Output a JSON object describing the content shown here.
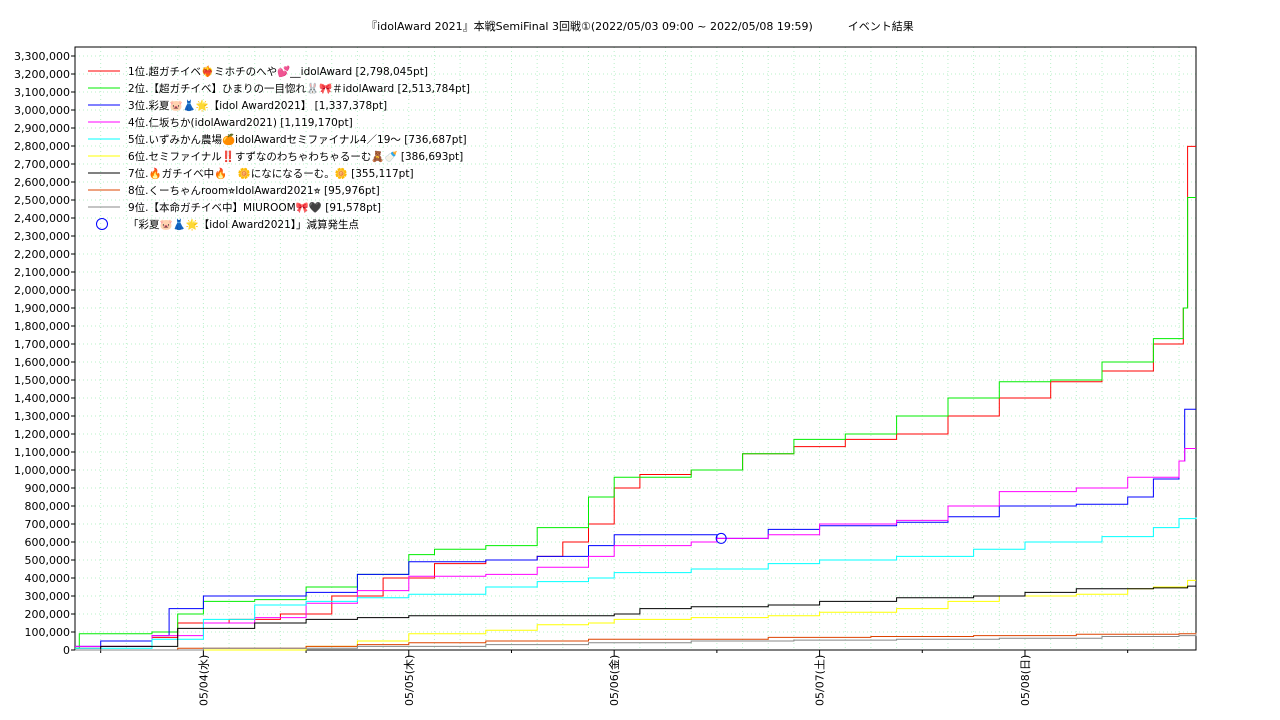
{
  "chart_data": {
    "type": "line",
    "title": "『idolAward 2021』本戦SemiFinal 3回戦①(2022/05/03 09:00 ~ 2022/05/08 19:59)          イベント結果",
    "xlabel": "",
    "ylabel": "",
    "xlim": [
      "2022/05/03 09:00",
      "2022/05/08 19:59"
    ],
    "ylim": [
      0,
      3350000
    ],
    "grid": true,
    "legend_position": "top-left",
    "x_ticks": [
      "05/04(水)",
      "05/05(木)",
      "05/06(金)",
      "05/07(土)",
      "05/08(日)"
    ],
    "y_ticks": [
      "0",
      "100,000",
      "200,000",
      "300,000",
      "400,000",
      "500,000",
      "600,000",
      "700,000",
      "800,000",
      "900,000",
      "1,000,000",
      "1,100,000",
      "1,200,000",
      "1,300,000",
      "1,400,000",
      "1,500,000",
      "1,600,000",
      "1,700,000",
      "1,800,000",
      "1,900,000",
      "2,000,000",
      "2,100,000",
      "2,200,000",
      "2,300,000",
      "2,400,000",
      "2,500,000",
      "2,600,000",
      "2,700,000",
      "2,800,000",
      "2,900,000",
      "3,000,000",
      "3,100,000",
      "3,200,000",
      "3,300,000"
    ],
    "series": [
      {
        "name": "1位.超ガチイベ❤️‍🔥ミホチのへや💕__idolAward [2,798,045pt]",
        "color": "#ff0000",
        "points": [
          [
            "05/03 09:00",
            10000
          ],
          [
            "05/03 12:00",
            20000
          ],
          [
            "05/03 18:00",
            70000
          ],
          [
            "05/03 21:00",
            150000
          ],
          [
            "05/04 03:00",
            170000
          ],
          [
            "05/04 09:00",
            200000
          ],
          [
            "05/04 15:00",
            300000
          ],
          [
            "05/04 21:00",
            400000
          ],
          [
            "05/05 03:00",
            480000
          ],
          [
            "05/05 09:00",
            500000
          ],
          [
            "05/05 15:00",
            520000
          ],
          [
            "05/05 18:00",
            600000
          ],
          [
            "05/05 21:00",
            700000
          ],
          [
            "05/06 00:00",
            900000
          ],
          [
            "05/06 03:00",
            975000
          ],
          [
            "05/06 09:00",
            1000000
          ],
          [
            "05/06 15:00",
            1090000
          ],
          [
            "05/06 21:00",
            1130000
          ],
          [
            "05/07 03:00",
            1170000
          ],
          [
            "05/07 09:00",
            1200000
          ],
          [
            "05/07 15:00",
            1300000
          ],
          [
            "05/07 21:00",
            1400000
          ],
          [
            "05/08 03:00",
            1490000
          ],
          [
            "05/08 09:00",
            1550000
          ],
          [
            "05/08 15:00",
            1700000
          ],
          [
            "05/08 18:30",
            1900000
          ],
          [
            "05/08 19:00",
            2798045
          ],
          [
            "05/08 19:59",
            2798045
          ]
        ]
      },
      {
        "name": "2位.【超ガチイベ】ひまりの一目惚れ🐰🎀＃idolAward [2,513,784pt]",
        "color": "#00ee00",
        "points": [
          [
            "05/03 09:00",
            10000
          ],
          [
            "05/03 09:30",
            90000
          ],
          [
            "05/03 18:00",
            100000
          ],
          [
            "05/03 21:00",
            200000
          ],
          [
            "05/04 00:00",
            270000
          ],
          [
            "05/04 06:00",
            280000
          ],
          [
            "05/04 12:00",
            350000
          ],
          [
            "05/04 18:00",
            420000
          ],
          [
            "05/05 00:00",
            530000
          ],
          [
            "05/05 03:00",
            560000
          ],
          [
            "05/05 09:00",
            580000
          ],
          [
            "05/05 15:00",
            680000
          ],
          [
            "05/05 21:00",
            850000
          ],
          [
            "05/06 00:00",
            960000
          ],
          [
            "05/06 09:00",
            1000000
          ],
          [
            "05/06 15:00",
            1090000
          ],
          [
            "05/06 21:00",
            1170000
          ],
          [
            "05/07 03:00",
            1200000
          ],
          [
            "05/07 09:00",
            1300000
          ],
          [
            "05/07 15:00",
            1400000
          ],
          [
            "05/07 21:00",
            1490000
          ],
          [
            "05/08 03:00",
            1500000
          ],
          [
            "05/08 09:00",
            1600000
          ],
          [
            "05/08 15:00",
            1730000
          ],
          [
            "05/08 18:30",
            1900000
          ],
          [
            "05/08 19:00",
            2513784
          ],
          [
            "05/08 19:59",
            2513784
          ]
        ]
      },
      {
        "name": "3位.彩夏🐷👗🌟【idol Award2021】 [1,337,378pt]",
        "color": "#0000ff",
        "points": [
          [
            "05/03 09:00",
            20000
          ],
          [
            "05/03 12:00",
            50000
          ],
          [
            "05/03 18:00",
            80000
          ],
          [
            "05/03 20:00",
            230000
          ],
          [
            "05/04 00:00",
            300000
          ],
          [
            "05/04 12:00",
            320000
          ],
          [
            "05/04 18:00",
            420000
          ],
          [
            "05/05 00:00",
            490000
          ],
          [
            "05/05 09:00",
            500000
          ],
          [
            "05/05 15:00",
            520000
          ],
          [
            "05/05 21:00",
            580000
          ],
          [
            "05/06 00:00",
            640000
          ],
          [
            "05/06 09:00",
            640000
          ],
          [
            "05/06 12:00",
            620000
          ],
          [
            "05/06 18:00",
            670000
          ],
          [
            "05/07 00:00",
            690000
          ],
          [
            "05/07 09:00",
            710000
          ],
          [
            "05/07 15:00",
            740000
          ],
          [
            "05/07 21:00",
            800000
          ],
          [
            "05/08 06:00",
            810000
          ],
          [
            "05/08 12:00",
            850000
          ],
          [
            "05/08 15:00",
            950000
          ],
          [
            "05/08 18:00",
            1050000
          ],
          [
            "05/08 18:40",
            1337378
          ],
          [
            "05/08 19:59",
            1337378
          ]
        ]
      },
      {
        "name": "4位.仁坂ちか(idolAward2021) [1,119,170pt]",
        "color": "#ff00ff",
        "points": [
          [
            "05/03 09:00",
            20000
          ],
          [
            "05/03 18:00",
            80000
          ],
          [
            "05/04 00:00",
            150000
          ],
          [
            "05/04 06:00",
            180000
          ],
          [
            "05/04 12:00",
            260000
          ],
          [
            "05/04 18:00",
            330000
          ],
          [
            "05/05 00:00",
            410000
          ],
          [
            "05/05 09:00",
            420000
          ],
          [
            "05/05 15:00",
            460000
          ],
          [
            "05/05 21:00",
            520000
          ],
          [
            "05/06 00:00",
            580000
          ],
          [
            "05/06 09:00",
            600000
          ],
          [
            "05/06 12:00",
            620000
          ],
          [
            "05/06 18:00",
            640000
          ],
          [
            "05/07 00:00",
            700000
          ],
          [
            "05/07 09:00",
            720000
          ],
          [
            "05/07 15:00",
            800000
          ],
          [
            "05/07 21:00",
            880000
          ],
          [
            "05/08 06:00",
            900000
          ],
          [
            "05/08 12:00",
            960000
          ],
          [
            "05/08 18:00",
            1050000
          ],
          [
            "05/08 18:40",
            1119170
          ],
          [
            "05/08 19:59",
            1119170
          ]
        ]
      },
      {
        "name": "5位.いずみかん農場🍊idolAwardセミファイナル4／19〜 [736,687pt]",
        "color": "#00ffff",
        "points": [
          [
            "05/03 09:00",
            10000
          ],
          [
            "05/03 18:00",
            60000
          ],
          [
            "05/04 00:00",
            170000
          ],
          [
            "05/04 06:00",
            250000
          ],
          [
            "05/04 12:00",
            270000
          ],
          [
            "05/04 18:00",
            290000
          ],
          [
            "05/05 00:00",
            310000
          ],
          [
            "05/05 09:00",
            350000
          ],
          [
            "05/05 15:00",
            380000
          ],
          [
            "05/05 21:00",
            400000
          ],
          [
            "05/06 00:00",
            430000
          ],
          [
            "05/06 09:00",
            450000
          ],
          [
            "05/06 18:00",
            480000
          ],
          [
            "05/07 00:00",
            500000
          ],
          [
            "05/07 09:00",
            520000
          ],
          [
            "05/07 18:00",
            560000
          ],
          [
            "05/08 00:00",
            600000
          ],
          [
            "05/08 09:00",
            630000
          ],
          [
            "05/08 15:00",
            680000
          ],
          [
            "05/08 18:00",
            730000
          ],
          [
            "05/08 19:59",
            736687
          ]
        ]
      },
      {
        "name": "6位.セミファイナル‼️すずなのわちゃわちゃるーむ🧸🍼 [386,693pt]",
        "color": "#ffff00",
        "points": [
          [
            "05/03 09:00",
            0
          ],
          [
            "05/04 12:00",
            20000
          ],
          [
            "05/04 18:00",
            50000
          ],
          [
            "05/05 00:00",
            90000
          ],
          [
            "05/05 09:00",
            110000
          ],
          [
            "05/05 15:00",
            140000
          ],
          [
            "05/05 21:00",
            150000
          ],
          [
            "05/06 00:00",
            170000
          ],
          [
            "05/06 09:00",
            180000
          ],
          [
            "05/06 18:00",
            190000
          ],
          [
            "05/07 00:00",
            210000
          ],
          [
            "05/07 09:00",
            230000
          ],
          [
            "05/07 15:00",
            270000
          ],
          [
            "05/07 21:00",
            300000
          ],
          [
            "05/08 06:00",
            310000
          ],
          [
            "05/08 12:00",
            340000
          ],
          [
            "05/08 15:00",
            350000
          ],
          [
            "05/08 19:00",
            386693
          ],
          [
            "05/08 19:59",
            386693
          ]
        ]
      },
      {
        "name": "7位.🔥ガチイベ中🔥　🌼になになるーむ。🌼 [355,117pt]",
        "color": "#000000",
        "points": [
          [
            "05/03 09:00",
            0
          ],
          [
            "05/03 12:00",
            20000
          ],
          [
            "05/03 21:00",
            120000
          ],
          [
            "05/04 06:00",
            150000
          ],
          [
            "05/04 12:00",
            170000
          ],
          [
            "05/04 18:00",
            180000
          ],
          [
            "05/05 00:00",
            190000
          ],
          [
            "05/05 09:00",
            190000
          ],
          [
            "05/05 21:00",
            190000
          ],
          [
            "05/06 00:00",
            200000
          ],
          [
            "05/06 03:00",
            230000
          ],
          [
            "05/06 09:00",
            240000
          ],
          [
            "05/06 18:00",
            250000
          ],
          [
            "05/07 00:00",
            270000
          ],
          [
            "05/07 09:00",
            290000
          ],
          [
            "05/07 18:00",
            300000
          ],
          [
            "05/08 00:00",
            320000
          ],
          [
            "05/08 06:00",
            340000
          ],
          [
            "05/08 15:00",
            345000
          ],
          [
            "05/08 19:00",
            355117
          ],
          [
            "05/08 19:59",
            355117
          ]
        ]
      },
      {
        "name": "8位.くーちゃんroom⭐︎IdolAward2021⭐︎ [95,976pt]",
        "color": "#dd4400",
        "points": [
          [
            "05/03 09:00",
            0
          ],
          [
            "05/03 21:00",
            10000
          ],
          [
            "05/04 12:00",
            20000
          ],
          [
            "05/04 18:00",
            30000
          ],
          [
            "05/05 00:00",
            40000
          ],
          [
            "05/05 09:00",
            50000
          ],
          [
            "05/05 21:00",
            60000
          ],
          [
            "05/06 09:00",
            60000
          ],
          [
            "05/06 18:00",
            70000
          ],
          [
            "05/07 06:00",
            75000
          ],
          [
            "05/07 18:00",
            80000
          ],
          [
            "05/08 06:00",
            88000
          ],
          [
            "05/08 18:00",
            90000
          ],
          [
            "05/08 19:59",
            95976
          ]
        ]
      },
      {
        "name": "9位.【本命ガチイベ中】MIUROOM🎀🖤 [91,578pt]",
        "color": "#888888",
        "points": [
          [
            "05/03 09:00",
            0
          ],
          [
            "05/04 00:00",
            10000
          ],
          [
            "05/04 18:00",
            20000
          ],
          [
            "05/05 09:00",
            30000
          ],
          [
            "05/05 21:00",
            40000
          ],
          [
            "05/06 09:00",
            50000
          ],
          [
            "05/06 21:00",
            55000
          ],
          [
            "05/07 09:00",
            60000
          ],
          [
            "05/07 21:00",
            65000
          ],
          [
            "05/08 09:00",
            75000
          ],
          [
            "05/08 18:00",
            80000
          ],
          [
            "05/08 19:59",
            91578
          ]
        ]
      }
    ],
    "annotations": [
      {
        "label": "「彩夏🐷👗🌟【idol Award2021】」減算発生点",
        "color": "#0000ff",
        "x": "05/06 12:30",
        "y": 620000
      }
    ]
  }
}
